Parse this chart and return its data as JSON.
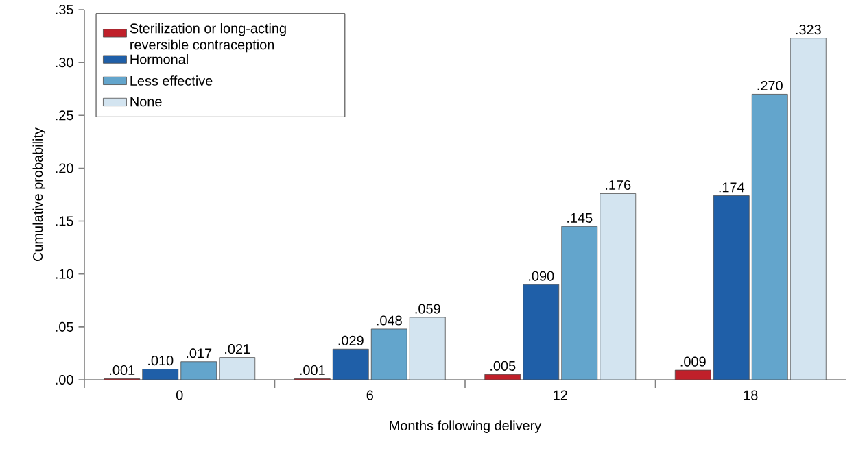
{
  "chart_data": {
    "type": "bar",
    "xlabel": "Months following delivery",
    "ylabel": "Cumulative probability",
    "categories": [
      "0",
      "6",
      "12",
      "18"
    ],
    "series": [
      {
        "name": "Sterilization or long-acting reversible contraception",
        "color": "#c0202a",
        "values": [
          0.001,
          0.001,
          0.005,
          0.009
        ],
        "value_labels": [
          ".001",
          ".001",
          ".005",
          ".009"
        ]
      },
      {
        "name": "Hormonal",
        "color": "#1f5fa8",
        "values": [
          0.01,
          0.029,
          0.09,
          0.174
        ],
        "value_labels": [
          ".010",
          ".029",
          ".090",
          ".174"
        ]
      },
      {
        "name": "Less effective",
        "color": "#63a5cc",
        "values": [
          0.017,
          0.048,
          0.145,
          0.27
        ],
        "value_labels": [
          ".017",
          ".048",
          ".145",
          ".270"
        ]
      },
      {
        "name": "None",
        "color": "#d3e4f0",
        "values": [
          0.021,
          0.059,
          0.176,
          0.323
        ],
        "value_labels": [
          ".021",
          ".059",
          ".176",
          ".323"
        ]
      }
    ],
    "ylim": [
      0,
      0.35
    ],
    "yticks": [
      {
        "value": 0,
        "label": ".00"
      },
      {
        "value": 0.05,
        "label": ".05"
      },
      {
        "value": 0.1,
        "label": ".10"
      },
      {
        "value": 0.15,
        "label": ".15"
      },
      {
        "value": 0.2,
        "label": ".20"
      },
      {
        "value": 0.25,
        "label": ".25"
      },
      {
        "value": 0.3,
        "label": ".30"
      },
      {
        "value": 0.35,
        "label": ".35"
      }
    ],
    "legend": "top left",
    "grid": false
  }
}
